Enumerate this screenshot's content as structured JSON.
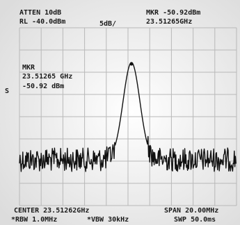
{
  "header": {
    "atten": "ATTEN 10dB",
    "ref_level": "RL -40.0dBm",
    "scale": "5dB/",
    "marker_label": "MKR -50.92dBm",
    "marker_freq": "23.51265GHz"
  },
  "marker_box": {
    "title": "MKR",
    "freq": "23.51265 GHz",
    "level": "-50.92 dBm"
  },
  "side_label": "S",
  "footer": {
    "center": "CENTER 23.51262GHz",
    "span": "SPAN 20.00MHz",
    "rbw": "*RBW 1.0MHz",
    "vbw": "*VBW 30kHz",
    "sweep": "SWP 50.0ms"
  }
}
